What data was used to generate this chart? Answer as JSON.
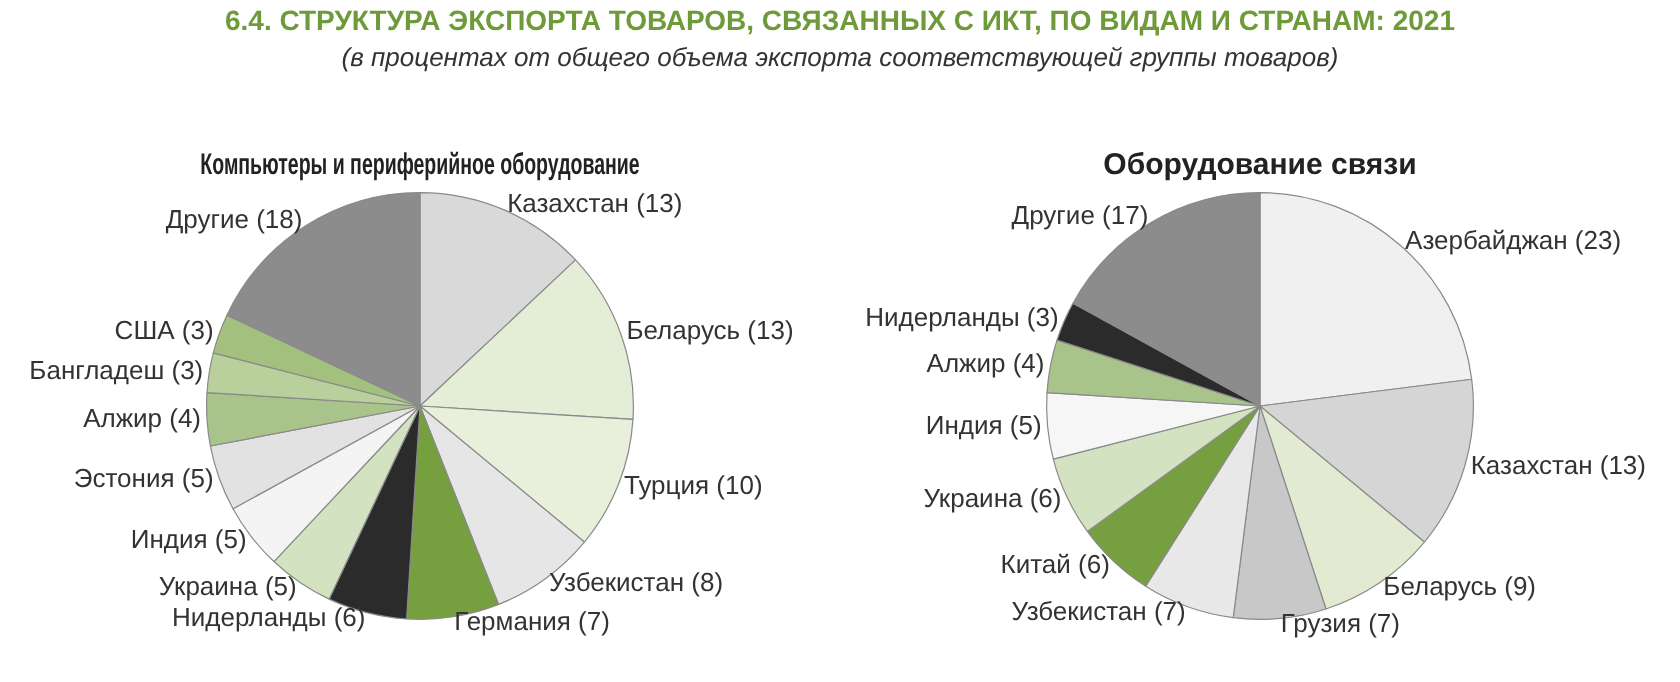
{
  "chart_data": [
    {
      "type": "other",
      "title": "6.4. СТРУКТУРА ЭКСПОРТА ТОВАРОВ, СВЯЗАННЫХ С ИКТ, ПО ВИДАМ И СТРАНАМ: 2021",
      "subtitle": "(в процентах от общего объема экспорта соответствующей группы товаров)"
    },
    {
      "type": "pie",
      "title": "Компьютеры и периферийное оборудование",
      "categories": [
        "Казахстан",
        "Беларусь",
        "Турция",
        "Узбекистан",
        "Германия",
        "Нидерланды",
        "Украина",
        "Индия",
        "Эстония",
        "Алжир",
        "Бангладеш",
        "США",
        "Другие"
      ],
      "values": [
        13,
        13,
        10,
        8,
        7,
        6,
        5,
        5,
        5,
        4,
        3,
        3,
        18
      ],
      "value_labels": [
        "(13)",
        "(13)",
        "(10)",
        "(8)",
        "(7)",
        "(6)",
        "(5)",
        "(5)",
        "(5)",
        "(4)",
        "(3)",
        "(3)",
        "(18)"
      ],
      "colors": [
        "#d9d9d9",
        "#e4edd6",
        "#e8f0dc",
        "#e6e6e6",
        "#76a03f",
        "#2b2b2b",
        "#d3e2c0",
        "#f4f4f4",
        "#e2e2e2",
        "#a9c48a",
        "#b9cf9c",
        "#a3c07f",
        "#8c8c8c"
      ],
      "legend": false
    },
    {
      "type": "pie",
      "title": "Оборудование связи",
      "categories": [
        "Азербайджан",
        "Казахстан",
        "Беларусь",
        "Грузия",
        "Узбекистан",
        "Китай",
        "Украина",
        "Индия",
        "Алжир",
        "Нидерланды",
        "Другие"
      ],
      "values": [
        23,
        13,
        9,
        7,
        7,
        6,
        6,
        5,
        4,
        3,
        17
      ],
      "value_labels": [
        "(23)",
        "(13)",
        "(9)",
        "(7)",
        "(7)",
        "(6)",
        "(6)",
        "(5)",
        "(4)",
        "(3)",
        "(17)"
      ],
      "colors": [
        "#f0f0f0",
        "#d5d5d5",
        "#e2ebd2",
        "#c8c8c8",
        "#e8e8e8",
        "#76a03f",
        "#d3e2c0",
        "#f6f6f6",
        "#a9c48a",
        "#2b2b2b",
        "#8c8c8c"
      ],
      "legend": false
    }
  ]
}
